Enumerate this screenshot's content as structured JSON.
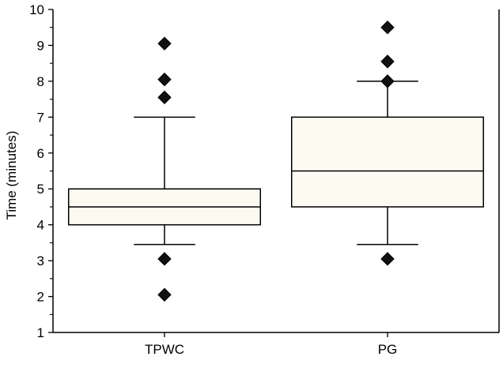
{
  "chart_data": {
    "type": "box",
    "ylabel": "Time (minutes)",
    "xlabel": "",
    "ylim": [
      1,
      10
    ],
    "yticks": [
      1,
      2,
      3,
      4,
      5,
      6,
      7,
      8,
      9,
      10
    ],
    "grid": false,
    "categories": [
      "TPWC",
      "PG"
    ],
    "boxes": [
      {
        "category": "TPWC",
        "whisker_low": 3.45,
        "q1": 4.0,
        "median": 4.5,
        "q3": 5.0,
        "whisker_high": 7.0,
        "outliers": [
          2.05,
          3.05,
          7.55,
          8.05,
          9.05
        ]
      },
      {
        "category": "PG",
        "whisker_low": 3.45,
        "q1": 4.5,
        "median": 5.5,
        "q3": 7.0,
        "whisker_high": 8.0,
        "outliers": [
          3.05,
          8.0,
          8.55,
          9.5
        ]
      }
    ],
    "colors": {
      "box_fill": "#fdfaf2",
      "stroke": "#000000",
      "outlier": "#111111"
    }
  }
}
